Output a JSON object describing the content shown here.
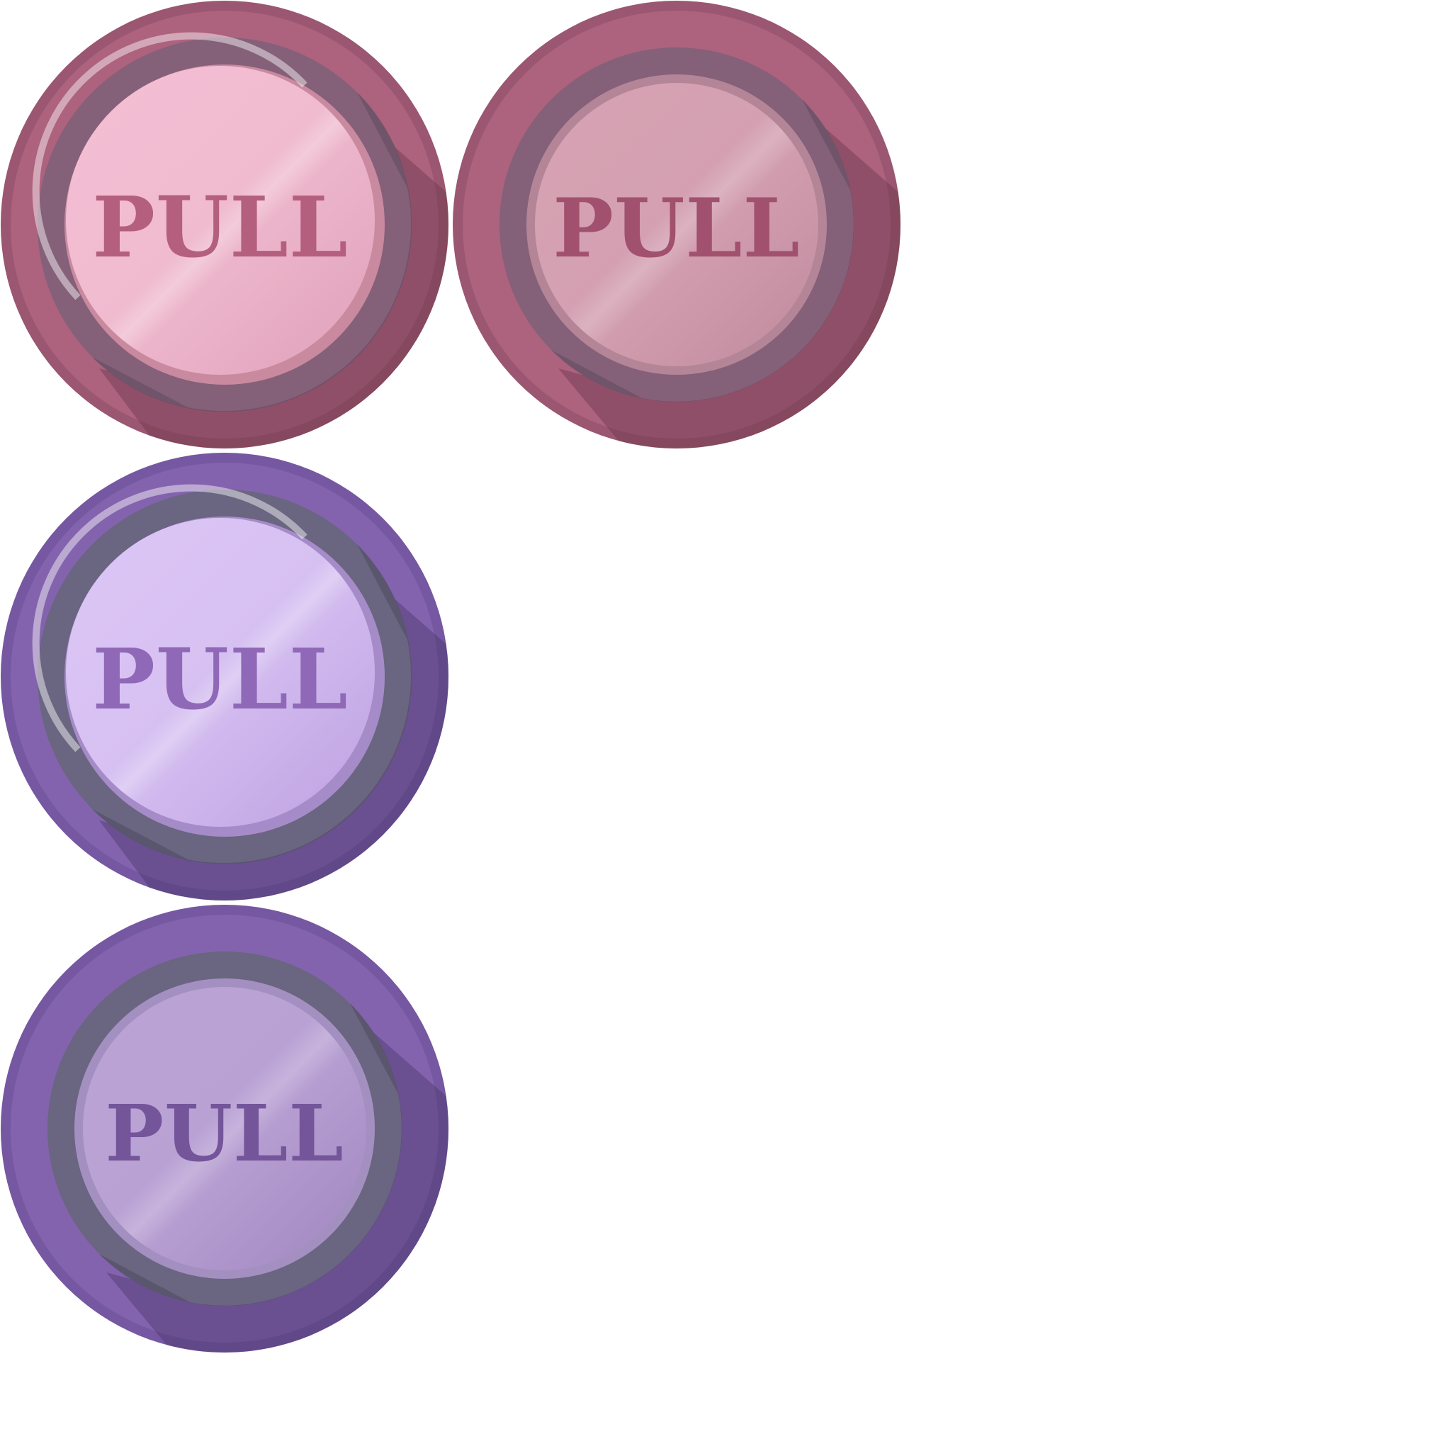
{
  "sprite_sheet": {
    "buttons": [
      {
        "label": "PULL",
        "variant": "pink-normal",
        "colors": {
          "rim": "#ad627e",
          "rim_edge": "#9b5671",
          "ring": "#846079",
          "ring_dark": "#5f4a5e",
          "face_top": "#f4bfd4",
          "face_bottom": "#dea0b9",
          "face_rim": "#c9899f",
          "text": "#b45f7e",
          "shadow": "#5b2f40"
        }
      },
      {
        "label": "PULL",
        "variant": "pink-pressed",
        "colors": {
          "rim": "#ad627e",
          "rim_edge": "#9b5671",
          "ring": "#846079",
          "ring_dark": "#5f4a5e",
          "face_top": "#d7a3b4",
          "face_bottom": "#bf899c",
          "face_rim": "#b48597",
          "text": "#a1506e",
          "shadow": "#5b2f40"
        }
      },
      {
        "label": "PULL",
        "variant": "purple-normal",
        "colors": {
          "rim": "#8363ae",
          "rim_edge": "#7657a1",
          "ring": "#6a6580",
          "ring_dark": "#4d4a5e",
          "face_top": "#dcc6f6",
          "face_bottom": "#bc9fe0",
          "face_rim": "#a58cc9",
          "text": "#8f69b8",
          "shadow": "#3b2d58"
        }
      },
      {
        "label": "PULL",
        "variant": "purple-pressed",
        "colors": {
          "rim": "#8363ae",
          "rim_edge": "#7657a1",
          "ring": "#6a6580",
          "ring_dark": "#4d4a5e",
          "face_top": "#bba3d6",
          "face_bottom": "#9f86bf",
          "face_rim": "#a48fc1",
          "text": "#74559a",
          "shadow": "#3b2d58"
        }
      }
    ]
  }
}
